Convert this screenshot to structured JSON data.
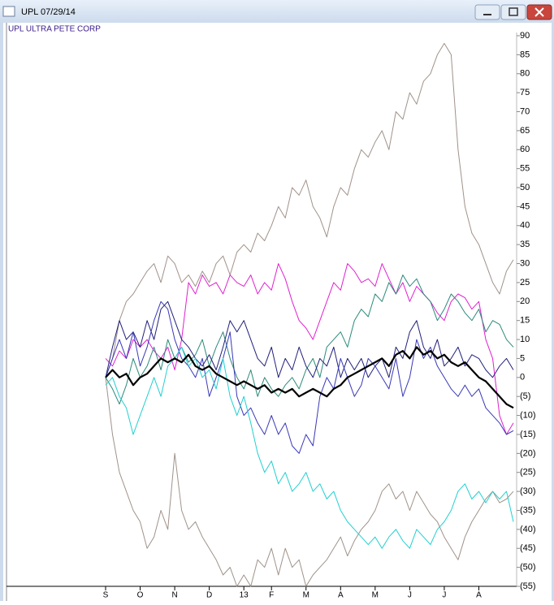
{
  "window_title": "UPL 07/29/14",
  "chart_data": {
    "type": "line",
    "title": "UPL   ULTRA PETE CORP",
    "categories": [
      "S",
      null,
      null,
      null,
      null,
      "O",
      null,
      null,
      null,
      null,
      "N",
      null,
      null,
      null,
      null,
      "D",
      null,
      null,
      null,
      null,
      "13",
      null,
      null,
      null,
      "F",
      null,
      null,
      null,
      null,
      "M",
      null,
      null,
      null,
      null,
      "A",
      null,
      null,
      null,
      null,
      "M",
      null,
      null,
      null,
      null,
      "J",
      null,
      null,
      null,
      null,
      "J",
      null,
      null,
      null,
      null,
      "A",
      null,
      null,
      null,
      null,
      null
    ],
    "ylim": [
      -55,
      90
    ],
    "yticks": [
      90,
      85,
      80,
      75,
      70,
      65,
      60,
      55,
      50,
      45,
      40,
      35,
      30,
      25,
      20,
      15,
      10,
      5,
      0,
      {
        "value": -5,
        "label": "(5)"
      },
      {
        "value": -10,
        "label": "(10)"
      },
      {
        "value": -15,
        "label": "(15)"
      },
      {
        "value": -20,
        "label": "(20)"
      },
      {
        "value": -25,
        "label": "(25)"
      },
      {
        "value": -30,
        "label": "(30)"
      },
      {
        "value": -35,
        "label": "(35)"
      },
      {
        "value": -40,
        "label": "(40)"
      },
      {
        "value": -45,
        "label": "(45)"
      },
      {
        "value": -50,
        "label": "(50)"
      },
      {
        "value": -55,
        "label": "(55)"
      }
    ],
    "series": [
      {
        "color": "#a0928a",
        "width": 1,
        "values": [
          0,
          5,
          15,
          20,
          22,
          25,
          28,
          30,
          25,
          32,
          30,
          25,
          27,
          24,
          28,
          25,
          30,
          32,
          27,
          33,
          35,
          33,
          38,
          36,
          40,
          45,
          42,
          50,
          48,
          52,
          45,
          42,
          37,
          45,
          50,
          48,
          55,
          60,
          58,
          62,
          65,
          60,
          70,
          68,
          75,
          72,
          78,
          80,
          85,
          88,
          85,
          60,
          45,
          38,
          35,
          30,
          25,
          22,
          28,
          31
        ]
      },
      {
        "color": "#a0928a",
        "width": 1,
        "values": [
          0,
          -15,
          -25,
          -30,
          -35,
          -38,
          -45,
          -42,
          -35,
          -40,
          -20,
          -35,
          -40,
          -38,
          -42,
          -45,
          -48,
          -52,
          -50,
          -55,
          -52,
          -55,
          -48,
          -50,
          -45,
          -52,
          -45,
          -50,
          -48,
          -55,
          -52,
          -50,
          -48,
          -45,
          -42,
          -47,
          -43,
          -40,
          -38,
          -35,
          -30,
          -28,
          -32,
          -30,
          -35,
          -30,
          -33,
          -36,
          -38,
          -42,
          -45,
          -48,
          -42,
          -38,
          -35,
          -32,
          -30,
          -33,
          -32,
          -30
        ]
      },
      {
        "color": "#e020d0",
        "width": 1,
        "values": [
          5,
          3,
          7,
          5,
          10,
          8,
          10,
          7,
          5,
          8,
          2,
          10,
          25,
          22,
          27,
          24,
          25,
          22,
          27,
          25,
          24,
          27,
          22,
          25,
          23,
          30,
          26,
          20,
          15,
          13,
          10,
          15,
          20,
          25,
          23,
          30,
          28,
          25,
          26,
          24,
          30,
          26,
          22,
          25,
          20,
          24,
          22,
          20,
          17,
          15,
          20,
          22,
          21,
          18,
          20,
          10,
          5,
          -10,
          -15,
          -12
        ]
      },
      {
        "color": "#2a8a7a",
        "width": 1,
        "values": [
          0,
          -3,
          -7,
          -2,
          5,
          0,
          3,
          8,
          2,
          10,
          5,
          8,
          4,
          6,
          10,
          3,
          8,
          12,
          5,
          0,
          -3,
          2,
          -5,
          0,
          -3,
          -5,
          -2,
          0,
          -3,
          2,
          5,
          0,
          8,
          10,
          12,
          8,
          15,
          18,
          16,
          22,
          20,
          25,
          22,
          27,
          24,
          26,
          22,
          20,
          15,
          18,
          22,
          20,
          17,
          15,
          18,
          12,
          15,
          14,
          10,
          8
        ]
      },
      {
        "color": "#20207a",
        "width": 1,
        "values": [
          0,
          8,
          15,
          10,
          12,
          8,
          15,
          10,
          18,
          20,
          15,
          10,
          8,
          5,
          3,
          6,
          2,
          8,
          15,
          12,
          15,
          10,
          5,
          3,
          8,
          0,
          5,
          2,
          8,
          3,
          0,
          5,
          3,
          8,
          0,
          5,
          2,
          5,
          0,
          3,
          5,
          0,
          8,
          5,
          12,
          15,
          8,
          5,
          10,
          3,
          5,
          8,
          3,
          6,
          5,
          2,
          0,
          3,
          5,
          2
        ]
      },
      {
        "color": "#3838b8",
        "width": 1,
        "values": [
          0,
          5,
          10,
          5,
          12,
          3,
          8,
          15,
          20,
          18,
          10,
          5,
          3,
          0,
          5,
          -5,
          0,
          5,
          12,
          -5,
          -10,
          -8,
          -12,
          -15,
          -10,
          -15,
          -12,
          -18,
          -20,
          -15,
          -18,
          -5,
          0,
          -3,
          5,
          0,
          -5,
          -2,
          5,
          3,
          0,
          -3,
          5,
          -5,
          0,
          10,
          5,
          8,
          3,
          0,
          -3,
          -5,
          -2,
          -5,
          -3,
          -8,
          -10,
          -12,
          -15,
          -14
        ]
      },
      {
        "color": "#20d0d0",
        "width": 1,
        "values": [
          -2,
          0,
          -5,
          -8,
          -15,
          -10,
          -5,
          0,
          -5,
          3,
          5,
          8,
          3,
          5,
          0,
          2,
          -3,
          5,
          -5,
          -10,
          -5,
          -12,
          -20,
          -25,
          -22,
          -28,
          -25,
          -30,
          -28,
          -25,
          -30,
          -28,
          -32,
          -30,
          -35,
          -38,
          -40,
          -42,
          -44,
          -42,
          -45,
          -42,
          -40,
          -43,
          -45,
          -40,
          -42,
          -44,
          -40,
          -38,
          -35,
          -30,
          -28,
          -32,
          -30,
          -33,
          -30,
          -32,
          -30,
          -38
        ]
      },
      {
        "color": "#000000",
        "width": 2.2,
        "values": [
          0,
          2,
          0,
          1,
          -2,
          0,
          1,
          3,
          5,
          4,
          5,
          4,
          6,
          3,
          2,
          3,
          1,
          0,
          -1,
          -2,
          -1,
          -2,
          -3,
          -2,
          -4,
          -3,
          -4,
          -3,
          -5,
          -4,
          -3,
          -4,
          -5,
          -3,
          -2,
          0,
          1,
          2,
          3,
          4,
          5,
          3,
          6,
          7,
          5,
          8,
          6,
          7,
          5,
          6,
          4,
          3,
          4,
          2,
          0,
          -1,
          -3,
          -5,
          -7,
          -8
        ]
      }
    ]
  }
}
